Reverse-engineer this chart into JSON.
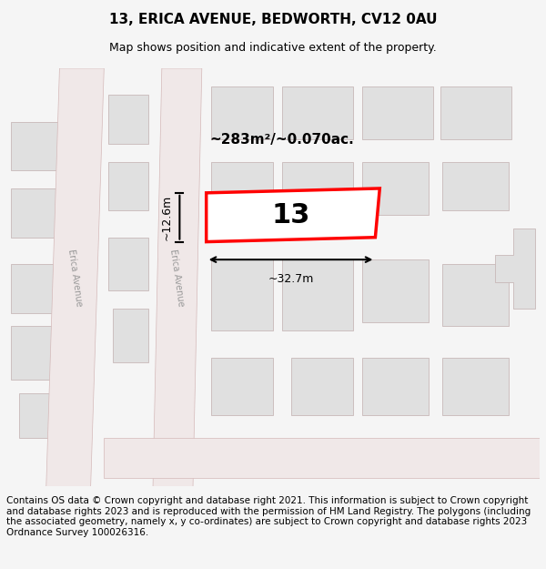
{
  "title": "13, ERICA AVENUE, BEDWORTH, CV12 0AU",
  "subtitle": "Map shows position and indicative extent of the property.",
  "area_text": "~283m²/~0.070ac.",
  "plot_number": "13",
  "width_label": "~32.7m",
  "height_label": "~12.6m",
  "footer_text": "Contains OS data © Crown copyright and database right 2021. This information is subject to Crown copyright and database rights 2023 and is reproduced with the permission of HM Land Registry. The polygons (including the associated geometry, namely x, y co-ordinates) are subject to Crown copyright and database rights 2023 Ordnance Survey 100026316.",
  "bg_color": "#f5f5f5",
  "map_bg": "#ffffff",
  "road_color": "#e8d8d8",
  "building_color": "#e0e0e0",
  "building_edge": "#c8b8b8",
  "highlight_color": "#ff0000",
  "road_fill": "#f0e8e8",
  "road_stripe": "#d4b8b8",
  "title_fontsize": 11,
  "subtitle_fontsize": 9,
  "footer_fontsize": 7.5
}
